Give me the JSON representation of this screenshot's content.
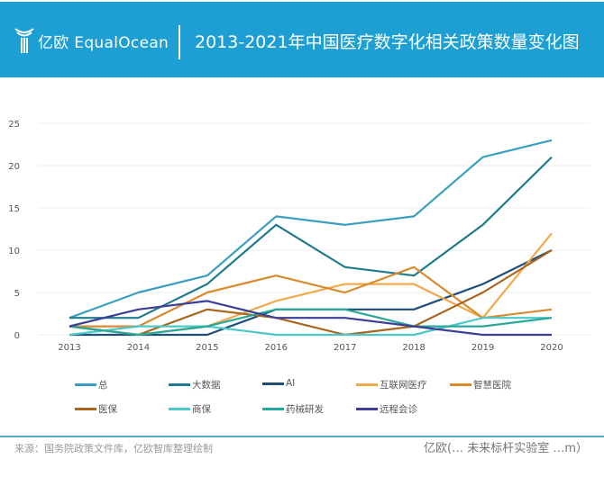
{
  "header": {
    "logo_text": "亿欧 EqualOcean",
    "title": "2013-2021年中国医疗数字化相关政策数量变化图",
    "background": "#1e9fd3"
  },
  "chart_data": {
    "type": "line",
    "title": "2013-2021年中国医疗数字化相关政策数量变化图",
    "x": [
      "2013",
      "2014",
      "2015",
      "2016",
      "2017",
      "2018",
      "2019",
      "2020"
    ],
    "yticks": [
      "0",
      "5",
      "10",
      "15",
      "20",
      "25"
    ],
    "ylim": [
      0,
      25
    ],
    "grid": true,
    "legend": "bottom",
    "series": [
      {
        "name": "总",
        "color": "#3a9fbf",
        "values": [
          2,
          5,
          7,
          14,
          13,
          14,
          21,
          23
        ]
      },
      {
        "name": "大数据",
        "color": "#1f7a8c",
        "values": [
          2,
          2,
          6,
          13,
          8,
          7,
          13,
          21
        ]
      },
      {
        "name": "AI",
        "color": "#1d4e7a",
        "values": [
          0,
          0,
          0,
          3,
          3,
          3,
          6,
          10
        ]
      },
      {
        "name": "互联网医疗",
        "color": "#f0aa4c",
        "values": [
          1,
          0,
          1,
          4,
          6,
          6,
          2,
          12
        ]
      },
      {
        "name": "智慧医院",
        "color": "#d98a30",
        "values": [
          1,
          1,
          5,
          7,
          5,
          8,
          2,
          3
        ]
      },
      {
        "name": "医保",
        "color": "#a8661f",
        "values": [
          1,
          0,
          3,
          2,
          0,
          1,
          5,
          10
        ]
      },
      {
        "name": "商保",
        "color": "#4cc8c8",
        "values": [
          0,
          1,
          1,
          0,
          0,
          0,
          2,
          2
        ]
      },
      {
        "name": "药械研发",
        "color": "#27a899",
        "values": [
          1,
          0,
          1,
          3,
          3,
          1,
          1,
          2
        ]
      },
      {
        "name": "远程会诊",
        "color": "#3b3f96",
        "values": [
          1,
          3,
          4,
          2,
          2,
          1,
          0,
          0
        ]
      }
    ]
  },
  "footer": {
    "source": "来源：国务院政策文件库，亿欧智库整理绘制",
    "watermark": "亿欧(… 未来标杆实验室 …m）"
  }
}
